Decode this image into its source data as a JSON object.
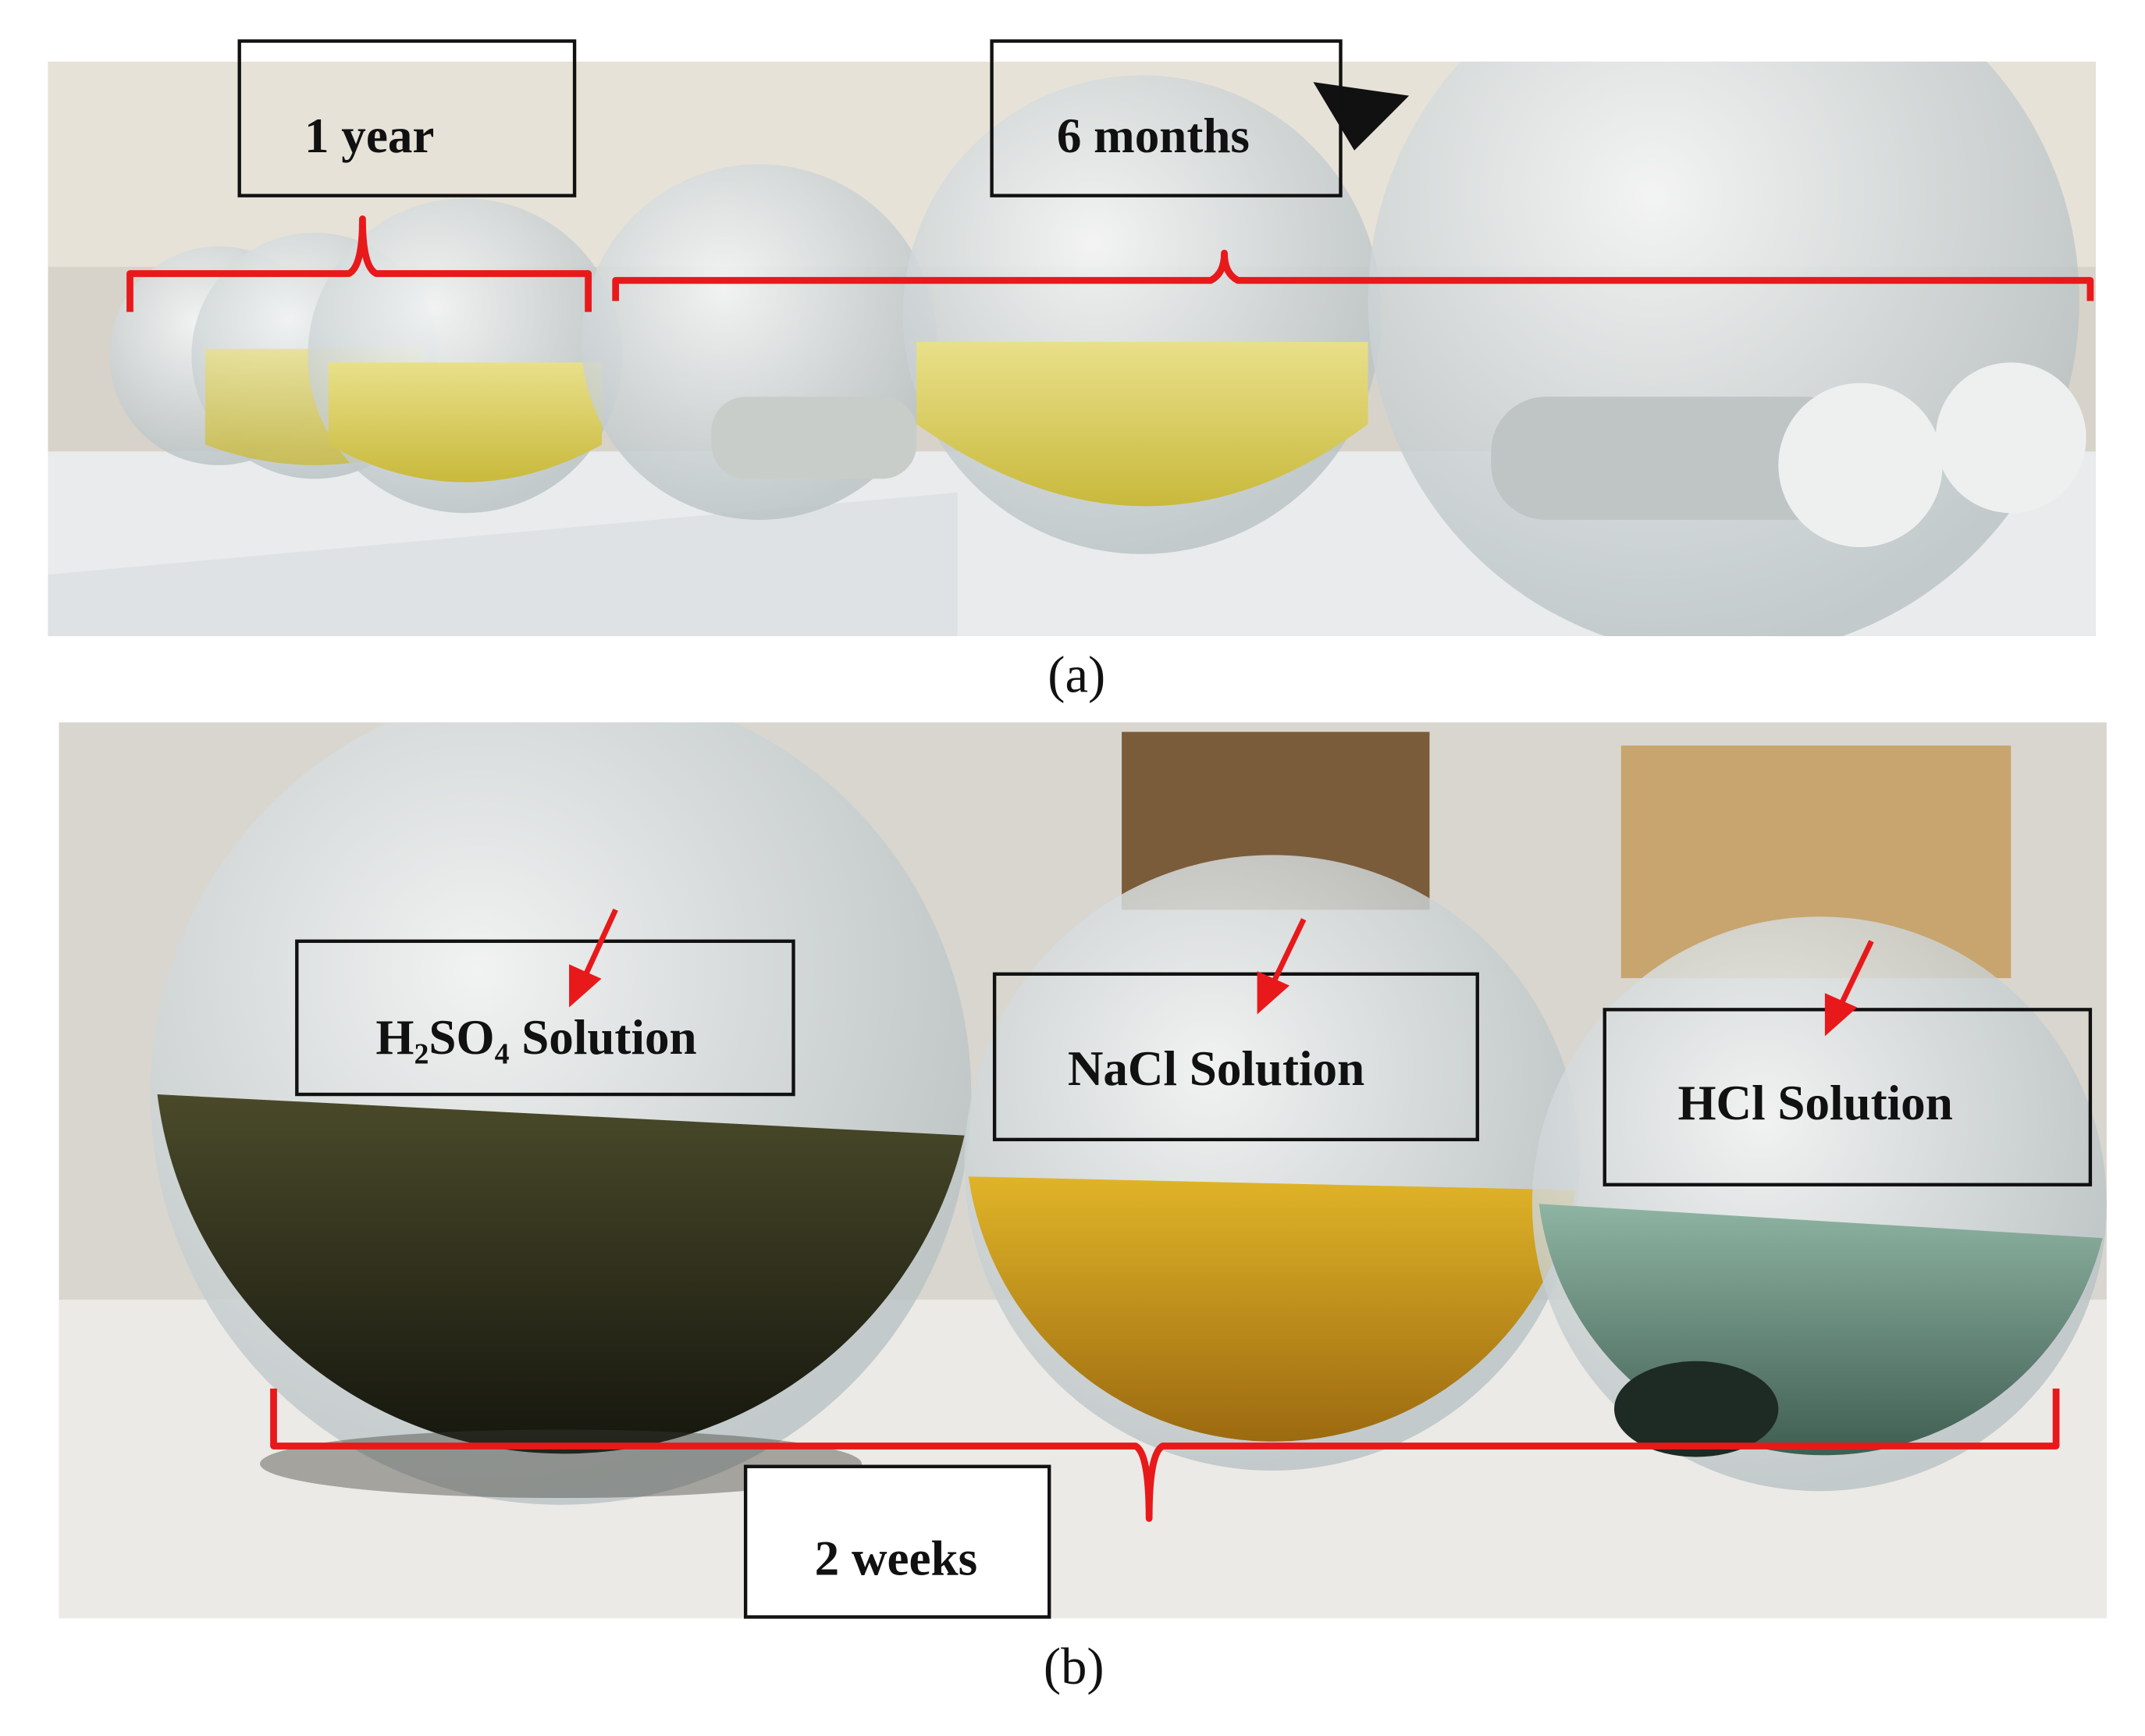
{
  "panels": [
    {
      "caption": "(a)",
      "labels": [
        "1 year",
        "6 months"
      ]
    },
    {
      "caption": "(b)",
      "labels": [
        "H₂SO₄ Solution",
        "NaCl Solution",
        "HCl Solution",
        "2 weeks"
      ]
    }
  ]
}
